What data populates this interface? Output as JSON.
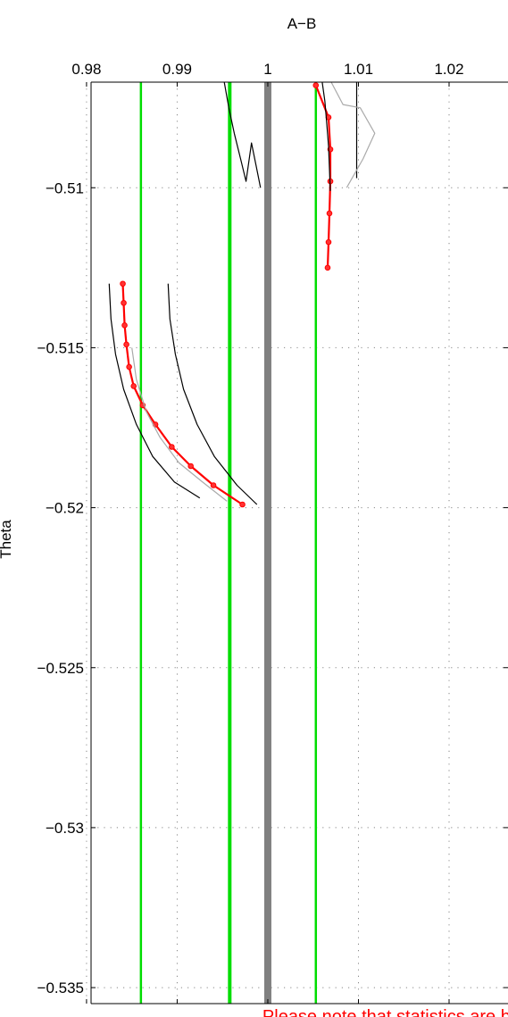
{
  "chart_data": {
    "type": "line",
    "title": "",
    "xlabel": "A−B",
    "ylabel": "Theta",
    "xlim": [
      0.9805,
      1.0265
    ],
    "ylim": [
      -0.5355,
      -0.5067
    ],
    "x_axis_position": "top",
    "grid": true,
    "x_ticks": [
      {
        "value": 0.98,
        "label": "0.98"
      },
      {
        "value": 0.99,
        "label": "0.99"
      },
      {
        "value": 1.0,
        "label": "1"
      },
      {
        "value": 1.01,
        "label": "1.01"
      },
      {
        "value": 1.02,
        "label": "1.02"
      }
    ],
    "y_ticks": [
      {
        "value": -0.51,
        "label": "−0.51"
      },
      {
        "value": -0.515,
        "label": "−0.515"
      },
      {
        "value": -0.52,
        "label": "−0.52"
      },
      {
        "value": -0.525,
        "label": "−0.525"
      },
      {
        "value": -0.53,
        "label": "−0.53"
      },
      {
        "value": -0.535,
        "label": "−0.535"
      }
    ],
    "vertical_lines": [
      {
        "x": 0.986,
        "color": "#00dd00",
        "width": 2.5
      },
      {
        "x": 0.9958,
        "color": "#00dd00",
        "width": 4
      },
      {
        "x": 1.0,
        "color": "#808080",
        "width": 8
      },
      {
        "x": 1.0053,
        "color": "#00dd00",
        "width": 2.5
      }
    ],
    "series": [
      {
        "style": "red-markers",
        "color": "#ff0000",
        "x": [
          1.0053,
          1.0067,
          1.0069,
          1.0069,
          1.0068,
          1.0067,
          1.0066
        ],
        "y": [
          -0.5068,
          -0.5078,
          -0.5088,
          -0.5098,
          -0.5108,
          -0.5117,
          -0.5125
        ]
      },
      {
        "style": "red-markers",
        "color": "#ff0000",
        "x": [
          0.984,
          0.9841,
          0.9842,
          0.9844,
          0.9847,
          0.9852,
          0.9862,
          0.9876,
          0.9894,
          0.9915,
          0.994,
          0.9972
        ],
        "y": [
          -0.513,
          -0.5136,
          -0.5143,
          -0.5149,
          -0.5156,
          -0.5162,
          -0.5168,
          -0.5174,
          -0.5181,
          -0.5187,
          -0.5193,
          -0.5199
        ]
      },
      {
        "style": "black",
        "color": "#000000",
        "x": [
          0.9952,
          0.9957,
          0.9963,
          0.997,
          0.9976,
          0.9982,
          0.9987,
          0.9992
        ],
        "y": [
          -0.5067,
          -0.5075,
          -0.5083,
          -0.5091,
          -0.5098,
          -0.5086,
          -0.5093,
          -0.51
        ]
      },
      {
        "style": "black",
        "color": "#000000",
        "x": [
          1.006,
          1.0063,
          1.0065,
          1.0067,
          1.0068,
          1.0069
        ],
        "y": [
          -0.5067,
          -0.5073,
          -0.508,
          -0.5087,
          -0.5094,
          -0.5101
        ]
      },
      {
        "style": "black",
        "color": "#000000",
        "x": [
          1.0098,
          1.0098,
          1.0098,
          1.0098
        ],
        "y": [
          -0.5067,
          -0.5077,
          -0.5087,
          -0.5097
        ]
      },
      {
        "style": "black",
        "color": "#000000",
        "x": [
          0.9825,
          0.9827,
          0.9832,
          0.9841,
          0.9855,
          0.9873,
          0.9897,
          0.9925
        ],
        "y": [
          -0.513,
          -0.5141,
          -0.5152,
          -0.5163,
          -0.5174,
          -0.5184,
          -0.5192,
          -0.5197
        ]
      },
      {
        "style": "black",
        "color": "#000000",
        "x": [
          0.989,
          0.9892,
          0.9898,
          0.9907,
          0.9922,
          0.9941,
          0.9966,
          0.9988
        ],
        "y": [
          -0.513,
          -0.5141,
          -0.5152,
          -0.5163,
          -0.5174,
          -0.5184,
          -0.5193,
          -0.5199
        ]
      },
      {
        "style": "gray",
        "color": "#aaaaaa",
        "x": [
          1.007,
          1.0083,
          1.0102,
          1.0118,
          1.0105,
          1.0087
        ],
        "y": [
          -0.5067,
          -0.5074,
          -0.5075,
          -0.5083,
          -0.5091,
          -0.51
        ]
      },
      {
        "style": "gray",
        "color": "#aaaaaa",
        "x": [
          0.985,
          0.9855,
          0.9866,
          0.9881,
          0.9902,
          0.9928,
          0.9955
        ],
        "y": [
          -0.515,
          -0.516,
          -0.517,
          -0.5178,
          -0.5186,
          -0.5192,
          -0.5198
        ]
      }
    ],
    "annotation": {
      "text": "Please note that statistics are bad",
      "color": "#ff0000"
    }
  }
}
